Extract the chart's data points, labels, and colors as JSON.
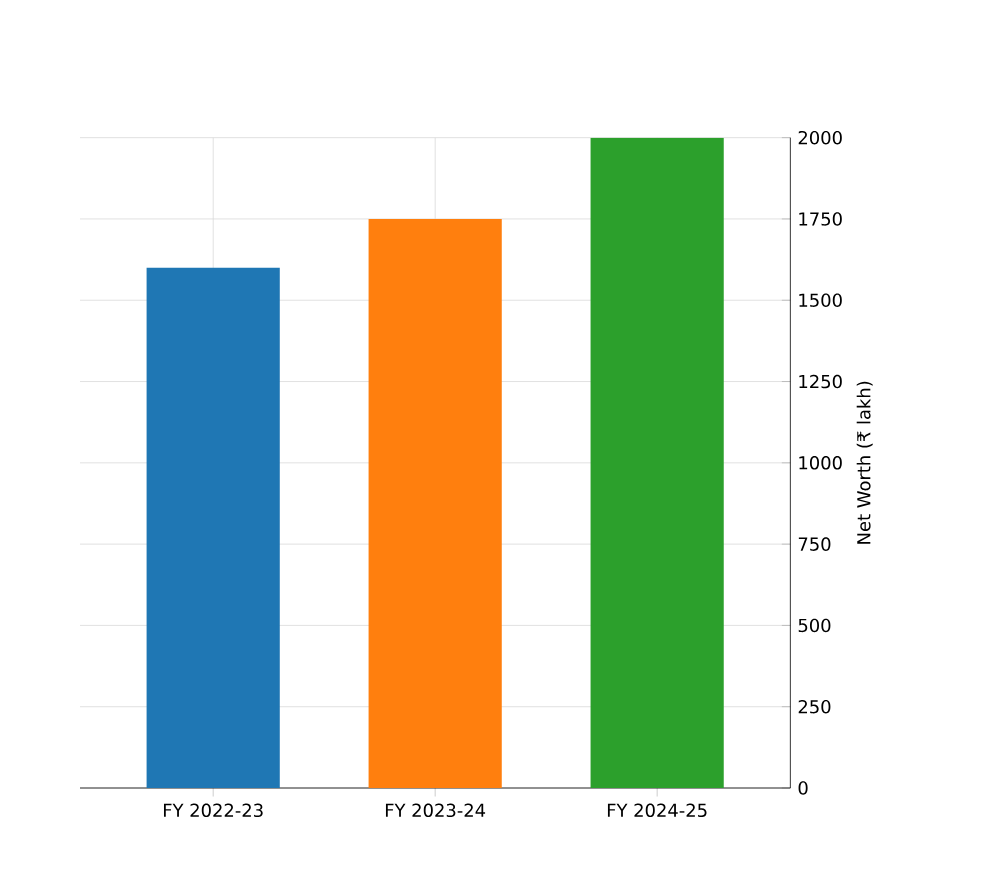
{
  "chart_data": {
    "type": "bar",
    "categories": [
      "FY 2022-23",
      "FY 2023-24",
      "FY 2024-25"
    ],
    "values": [
      1600,
      1750,
      2000
    ],
    "colors": [
      "#1f77b4",
      "#ff7f0e",
      "#2ca02c"
    ],
    "ylabel": "Net Worth (₹ lakh)",
    "ylim": [
      0,
      2000
    ],
    "yticks": [
      0,
      250,
      500,
      750,
      1000,
      1250,
      1500,
      1750,
      2000
    ],
    "grid": true
  }
}
